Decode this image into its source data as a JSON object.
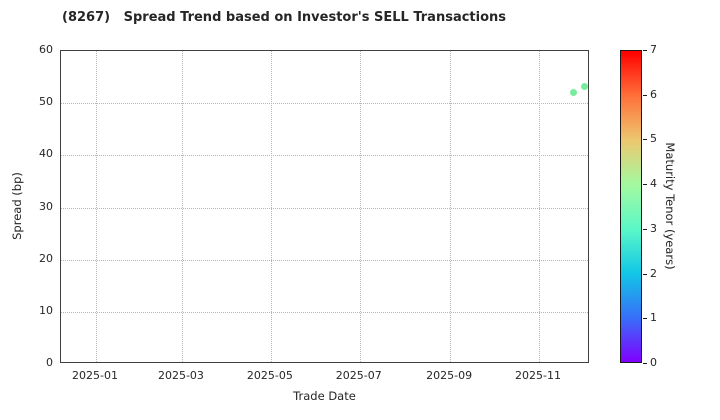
{
  "title": "(8267)   Spread Trend based on Investor's SELL Transactions",
  "chart_data": {
    "type": "scatter",
    "title": "(8267)   Spread Trend based on Investor's SELL Transactions",
    "xlabel": "Trade Date",
    "ylabel": "Spread (bp)",
    "x_tick_labels": [
      "2025-01",
      "2025-03",
      "2025-05",
      "2025-07",
      "2025-09",
      "2025-11"
    ],
    "y_ticks": [
      0,
      10,
      20,
      30,
      40,
      50,
      60
    ],
    "ylim": [
      0,
      60
    ],
    "xlim_days_from_2025_01_01": [
      -24,
      339
    ],
    "grid": true,
    "points": [
      {
        "date": "2025-11-25",
        "spread_bp": 52.0,
        "maturity_tenor_years": 3.5
      },
      {
        "date": "2025-12-02",
        "spread_bp": 53.2,
        "maturity_tenor_years": 3.5
      }
    ],
    "point_color": "#78EC9E",
    "colorbar": {
      "label": "Maturity Tenor (years)",
      "min": 0,
      "max": 7,
      "ticks": [
        0,
        1,
        2,
        3,
        4,
        5,
        6,
        7
      ],
      "colormap": "rainbow",
      "gradient_stops_bottom_to_top": [
        "#8000FF",
        "#376FF9",
        "#12C7E6",
        "#5BF8C7",
        "#A4F99F",
        "#EDC76F",
        "#FF6F39",
        "#FF0000"
      ]
    }
  },
  "colors": {
    "text": "#262626",
    "spine": "#3f3f3f",
    "grid": "#b5b5b5",
    "background": "#ffffff"
  }
}
